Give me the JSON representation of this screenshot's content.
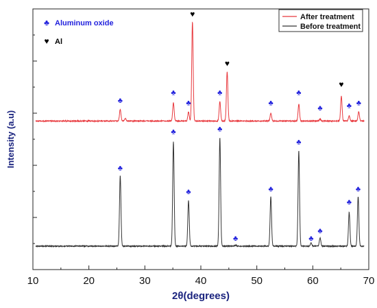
{
  "chart_data": {
    "type": "line",
    "xlabel": "2θ(degrees)",
    "ylabel": "Intensity (a.u)",
    "xlim": [
      10,
      70
    ],
    "ylim": [
      0,
      100
    ],
    "x_ticks": [
      10,
      20,
      30,
      40,
      50,
      60,
      70
    ],
    "x_tick_labels": [
      "10",
      "20",
      "30",
      "40",
      "50",
      "60",
      "70"
    ],
    "series": [
      {
        "name": "After treatment",
        "color": "#e8383d",
        "baseline": 57,
        "peaks": [
          {
            "x": 25.6,
            "height": 4.5
          },
          {
            "x": 26.5,
            "height": 1.0
          },
          {
            "x": 35.1,
            "height": 7.0
          },
          {
            "x": 37.8,
            "height": 3.5
          },
          {
            "x": 38.5,
            "height": 38.0
          },
          {
            "x": 43.4,
            "height": 7.5
          },
          {
            "x": 44.7,
            "height": 19.0
          },
          {
            "x": 52.5,
            "height": 3.0
          },
          {
            "x": 57.5,
            "height": 6.5
          },
          {
            "x": 61.3,
            "height": 0.8
          },
          {
            "x": 65.1,
            "height": 9.5
          },
          {
            "x": 66.5,
            "height": 2.0
          },
          {
            "x": 68.2,
            "height": 3.5
          }
        ]
      },
      {
        "name": "Before treatment",
        "color": "#333333",
        "baseline": 9,
        "peaks": [
          {
            "x": 25.6,
            "height": 27.0
          },
          {
            "x": 35.1,
            "height": 40.0
          },
          {
            "x": 37.8,
            "height": 17.5
          },
          {
            "x": 43.4,
            "height": 41.5
          },
          {
            "x": 46.2,
            "height": 0.4
          },
          {
            "x": 52.5,
            "height": 19.0
          },
          {
            "x": 57.5,
            "height": 36.5
          },
          {
            "x": 59.7,
            "height": 1.2
          },
          {
            "x": 61.3,
            "height": 3.2
          },
          {
            "x": 66.5,
            "height": 13.0
          },
          {
            "x": 68.1,
            "height": 19.0
          }
        ]
      }
    ],
    "legend": {
      "placement": "top-right",
      "entries": [
        "After treatment",
        "Before treatment"
      ]
    },
    "phase_key": [
      {
        "symbol": "♣",
        "label": "Aluminum oxide",
        "color": "#2222dd"
      },
      {
        "symbol": "♥",
        "label": "Al",
        "color": "#000000"
      }
    ],
    "phase_markers": [
      {
        "symbol": "♣",
        "color": "#2222dd",
        "x": 25.6,
        "y": 64
      },
      {
        "symbol": "♣",
        "color": "#2222dd",
        "x": 35.1,
        "y": 67
      },
      {
        "symbol": "♣",
        "color": "#2222dd",
        "x": 37.8,
        "y": 63
      },
      {
        "symbol": "♥",
        "color": "#000000",
        "x": 38.5,
        "y": 97
      },
      {
        "symbol": "♣",
        "color": "#2222dd",
        "x": 43.4,
        "y": 67
      },
      {
        "symbol": "♥",
        "color": "#000000",
        "x": 44.7,
        "y": 78
      },
      {
        "symbol": "♣",
        "color": "#2222dd",
        "x": 52.5,
        "y": 63
      },
      {
        "symbol": "♣",
        "color": "#2222dd",
        "x": 57.5,
        "y": 67
      },
      {
        "symbol": "♣",
        "color": "#2222dd",
        "x": 61.3,
        "y": 61
      },
      {
        "symbol": "♥",
        "color": "#000000",
        "x": 65.1,
        "y": 70
      },
      {
        "symbol": "♣",
        "color": "#2222dd",
        "x": 66.5,
        "y": 62
      },
      {
        "symbol": "♣",
        "color": "#2222dd",
        "x": 68.2,
        "y": 63
      },
      {
        "symbol": "♣",
        "color": "#2222dd",
        "x": 25.6,
        "y": 38
      },
      {
        "symbol": "♣",
        "color": "#2222dd",
        "x": 35.1,
        "y": 52
      },
      {
        "symbol": "♣",
        "color": "#2222dd",
        "x": 37.8,
        "y": 29
      },
      {
        "symbol": "♣",
        "color": "#2222dd",
        "x": 43.4,
        "y": 53
      },
      {
        "symbol": "♣",
        "color": "#2222dd",
        "x": 46.2,
        "y": 11
      },
      {
        "symbol": "♣",
        "color": "#2222dd",
        "x": 52.5,
        "y": 30
      },
      {
        "symbol": "♣",
        "color": "#2222dd",
        "x": 57.5,
        "y": 48
      },
      {
        "symbol": "♣",
        "color": "#2222dd",
        "x": 59.7,
        "y": 11
      },
      {
        "symbol": "♣",
        "color": "#2222dd",
        "x": 61.3,
        "y": 14
      },
      {
        "symbol": "♣",
        "color": "#2222dd",
        "x": 66.5,
        "y": 25
      },
      {
        "symbol": "♣",
        "color": "#2222dd",
        "x": 68.1,
        "y": 30
      }
    ],
    "grid": false
  }
}
